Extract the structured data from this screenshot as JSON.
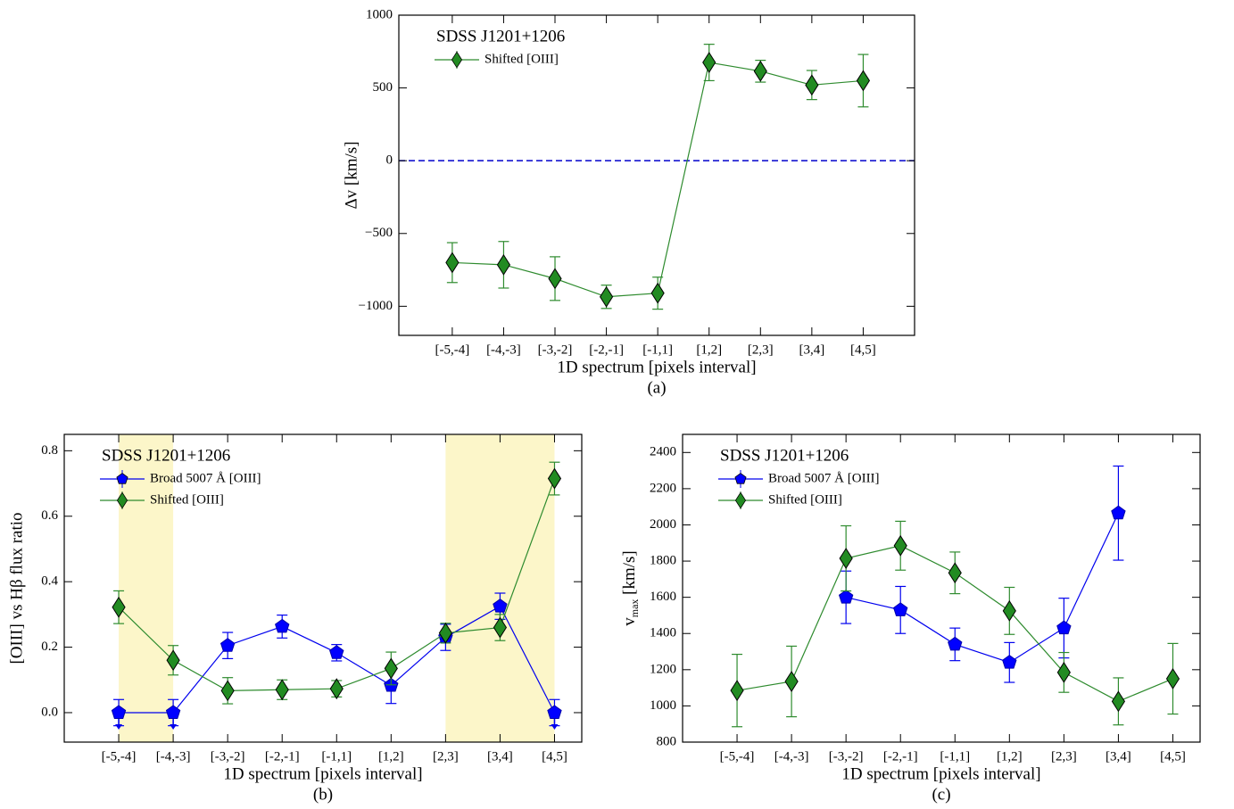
{
  "chart_data": [
    {
      "type": "line",
      "annotation": "SDSS J1201+1206",
      "xlabel": "1D spectrum [pixels interval]",
      "ylabel": "Δv [km/s]",
      "caption": "(a)",
      "categories": [
        "[-5,-4]",
        "[-4,-3]",
        "[-3,-2]",
        "[-2,-1]",
        "[-1,1]",
        "[1,2]",
        "[2,3]",
        "[3,4]",
        "[4,5]"
      ],
      "ylim": [
        -1200,
        1000
      ],
      "yticks": [
        {
          "value": -1000,
          "label": "−1000"
        },
        {
          "value": -500,
          "label": "−500"
        },
        0,
        500,
        1000
      ],
      "reference_line": 0,
      "reference_color": "#0000cc",
      "legend": "upper left",
      "series": [
        {
          "name": "Shifted [OIII]",
          "color": "#2e8b2e",
          "marker": "diamond",
          "values": [
            -700,
            -715,
            -810,
            -935,
            -910,
            675,
            615,
            520,
            550
          ],
          "errors": [
            137,
            160,
            150,
            80,
            110,
            125,
            75,
            100,
            180
          ]
        }
      ]
    },
    {
      "type": "line",
      "annotation": "SDSS J1201+1206",
      "xlabel": "1D spectrum [pixels interval]",
      "ylabel": "[OIII] vs Hβ flux ratio",
      "caption": "(b)",
      "categories": [
        "[-5,-4]",
        "[-4,-3]",
        "[-3,-2]",
        "[-2,-1]",
        "[-1,1]",
        "[1,2]",
        "[2,3]",
        "[3,4]",
        "[4,5]"
      ],
      "ylim": [
        -0.09,
        0.85
      ],
      "yticks": [
        {
          "value": 0,
          "label": "0.0"
        },
        0.2,
        0.4,
        0.6,
        0.8
      ],
      "shaded_ranges": [
        [
          0,
          1
        ],
        [
          6,
          8
        ]
      ],
      "shade_color": "#fcf6c9",
      "legend": "upper left",
      "series": [
        {
          "name": "Broad 5007 Å [OIII]",
          "color": "#0000ee",
          "marker": "pentagon",
          "values": [
            0,
            0,
            0.205,
            0.263,
            0.183,
            0.083,
            0.23,
            0.325,
            0
          ],
          "errors": [
            0.04,
            0.04,
            0.04,
            0.035,
            0.025,
            0.055,
            0.04,
            0.04,
            0.04
          ],
          "upper_limits": [
            true,
            true,
            false,
            false,
            false,
            false,
            false,
            false,
            true
          ]
        },
        {
          "name": "Shifted [OIII]",
          "color": "#2e8b2e",
          "marker": "diamond",
          "values": [
            0.322,
            0.16,
            0.067,
            0.07,
            0.073,
            0.135,
            0.243,
            0.26,
            0.715
          ],
          "errors": [
            0.05,
            0.045,
            0.04,
            0.03,
            0.025,
            0.05,
            0.03,
            0.04,
            0.05
          ]
        }
      ]
    },
    {
      "type": "line",
      "annotation": "SDSS J1201+1206",
      "xlabel": "1D spectrum [pixels interval]",
      "ylabel": "v",
      "ylabel_sub": "max",
      "ylabel_rest": " [km/s]",
      "caption": "(c)",
      "categories": [
        "[-5,-4]",
        "[-4,-3]",
        "[-3,-2]",
        "[-2,-1]",
        "[-1,1]",
        "[1,2]",
        "[2,3]",
        "[3,4]",
        "[4,5]"
      ],
      "ylim": [
        800,
        2500
      ],
      "yticks": [
        800,
        1000,
        1200,
        1400,
        1600,
        1800,
        2000,
        2200,
        2400
      ],
      "legend": "upper left",
      "series": [
        {
          "name": "Broad 5007 Å [OIII]",
          "color": "#0000ee",
          "marker": "pentagon",
          "values": [
            null,
            null,
            1600,
            1530,
            1340,
            1240,
            1430,
            2065,
            null
          ],
          "errors": [
            null,
            null,
            145,
            130,
            90,
            110,
            165,
            260,
            null
          ]
        },
        {
          "name": "Shifted [OIII]",
          "color": "#2e8b2e",
          "marker": "diamond",
          "values": [
            1085,
            1135,
            1815,
            1885,
            1735,
            1525,
            1185,
            1025,
            1150
          ],
          "errors": [
            200,
            195,
            180,
            135,
            115,
            130,
            110,
            130,
            195
          ]
        }
      ]
    }
  ]
}
